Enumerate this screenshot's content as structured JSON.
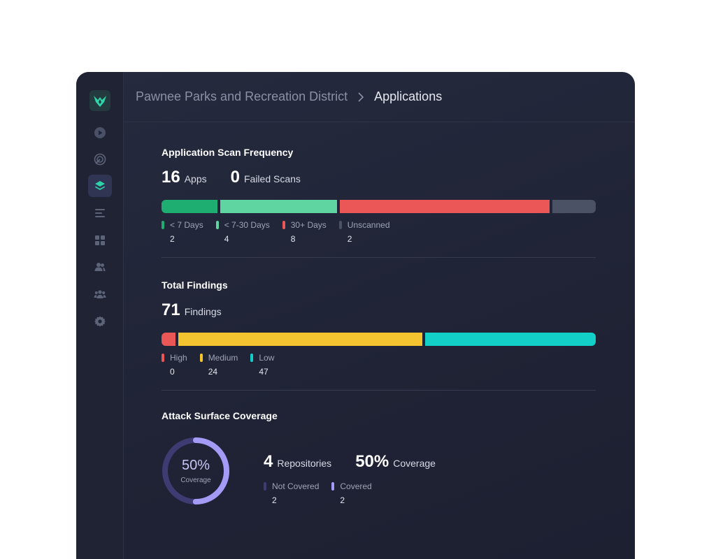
{
  "breadcrumb": {
    "org": "Pawnee Parks and Recreation District",
    "current": "Applications"
  },
  "sidebar": {
    "items": [
      {
        "icon": "play-circle-icon"
      },
      {
        "icon": "radar-icon"
      },
      {
        "icon": "layers-icon",
        "active": true
      },
      {
        "icon": "list-icon"
      },
      {
        "icon": "grid-icon"
      },
      {
        "icon": "users-icon"
      },
      {
        "icon": "team-icon"
      },
      {
        "icon": "gear-icon"
      }
    ]
  },
  "scan_frequency": {
    "title": "Application Scan Frequency",
    "apps_count": "16",
    "apps_label": "Apps",
    "failed_count": "0",
    "failed_label": "Failed Scans",
    "legend": [
      {
        "label": "< 7 Days",
        "count": "2",
        "color": "#1fae72"
      },
      {
        "label": "< 7-30 Days",
        "count": "4",
        "color": "#5fd6a2"
      },
      {
        "label": "30+ Days",
        "count": "8",
        "color": "#eb5757"
      },
      {
        "label": "Unscanned",
        "count": "2",
        "color": "#4b5266"
      }
    ]
  },
  "findings": {
    "title": "Total Findings",
    "total": "71",
    "total_label": "Findings",
    "legend": [
      {
        "label": "High",
        "count": "0",
        "color": "#eb5757"
      },
      {
        "label": "Medium",
        "count": "24",
        "color": "#f4c430"
      },
      {
        "label": "Low",
        "count": "47",
        "color": "#12d0c8"
      }
    ]
  },
  "coverage": {
    "title": "Attack Surface Coverage",
    "ring_percent": "50%",
    "ring_label": "Coverage",
    "ring_fraction": 0.5,
    "repos_count": "4",
    "repos_label": "Repositories",
    "coverage_count": "50%",
    "coverage_label": "Coverage",
    "legend": [
      {
        "label": "Not Covered",
        "count": "2",
        "color": "#3d3b72"
      },
      {
        "label": "Covered",
        "count": "2",
        "color": "#a49bf7"
      }
    ]
  }
}
